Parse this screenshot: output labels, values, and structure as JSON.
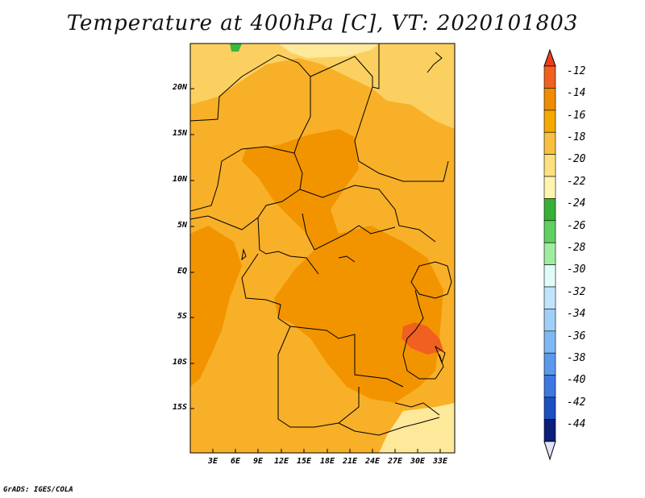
{
  "title": "Temperature at 400hPa [C], VT: 2020101803",
  "footer": "GrADS: IGES/COLA",
  "map": {
    "lat_labels": [
      "20N",
      "15N",
      "10N",
      "5N",
      "EQ",
      "5S",
      "10S",
      "15S"
    ],
    "lon_labels": [
      "3E",
      "6E",
      "9E",
      "12E",
      "15E",
      "18E",
      "21E",
      "24E",
      "27E",
      "30E",
      "33E"
    ],
    "lon_range": [
      0,
      35
    ],
    "lat_range": [
      -20,
      24
    ]
  },
  "colorbar": {
    "labels": [
      "-12",
      "-14",
      "-16",
      "-18",
      "-20",
      "-22",
      "-24",
      "-26",
      "-28",
      "-30",
      "-32",
      "-34",
      "-36",
      "-38",
      "-40",
      "-42",
      "-44"
    ],
    "colors": [
      "#f06020",
      "#f08c00",
      "#f5a800",
      "#f8c040",
      "#fde080",
      "#fff4b0",
      "#38b038",
      "#60d060",
      "#a0eca0",
      "#e0fcf8",
      "#c0e4fc",
      "#a0d0f8",
      "#80b8f4",
      "#5c98ec",
      "#3c78e0",
      "#1c50c0",
      "#0a1f78"
    ],
    "top_arrow_color": "#f03c1c",
    "bottom_arrow_color": "#e0e4f8"
  },
  "field_colors": {
    "minus_13": "#f06020",
    "minus_15": "#f29400",
    "minus_17": "#f8b028",
    "minus_19": "#fcd060",
    "minus_21": "#fee89a",
    "minus_23": "#3cb83c"
  }
}
